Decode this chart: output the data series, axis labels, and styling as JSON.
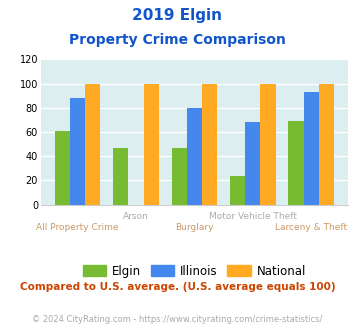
{
  "title_line1": "2019 Elgin",
  "title_line2": "Property Crime Comparison",
  "categories": [
    "All Property Crime",
    "Arson",
    "Burglary",
    "Motor Vehicle Theft",
    "Larceny & Theft"
  ],
  "elgin": [
    61,
    47,
    47,
    24,
    69
  ],
  "illinois": [
    88,
    0,
    80,
    68,
    93
  ],
  "national": [
    100,
    100,
    100,
    100,
    100
  ],
  "elgin_color": "#77bb33",
  "illinois_color": "#4488ee",
  "national_color": "#ffaa22",
  "bg_color": "#ddeef0",
  "title_color": "#1155cc",
  "xlabel_color_top": "#aaaaaa",
  "xlabel_color_bottom": "#cc9966",
  "note_color": "#cc4400",
  "footer_color": "#aaaaaa",
  "ylim": [
    0,
    120
  ],
  "yticks": [
    0,
    20,
    40,
    60,
    80,
    100,
    120
  ],
  "note": "Compared to U.S. average. (U.S. average equals 100)",
  "footer": "© 2024 CityRating.com - https://www.cityrating.com/crime-statistics/",
  "legend_labels": [
    "Elgin",
    "Illinois",
    "National"
  ],
  "top_labels": [
    "",
    "Arson",
    "",
    "Motor Vehicle Theft",
    ""
  ],
  "bottom_labels": [
    "All Property Crime",
    "",
    "Burglary",
    "",
    "Larceny & Theft"
  ]
}
